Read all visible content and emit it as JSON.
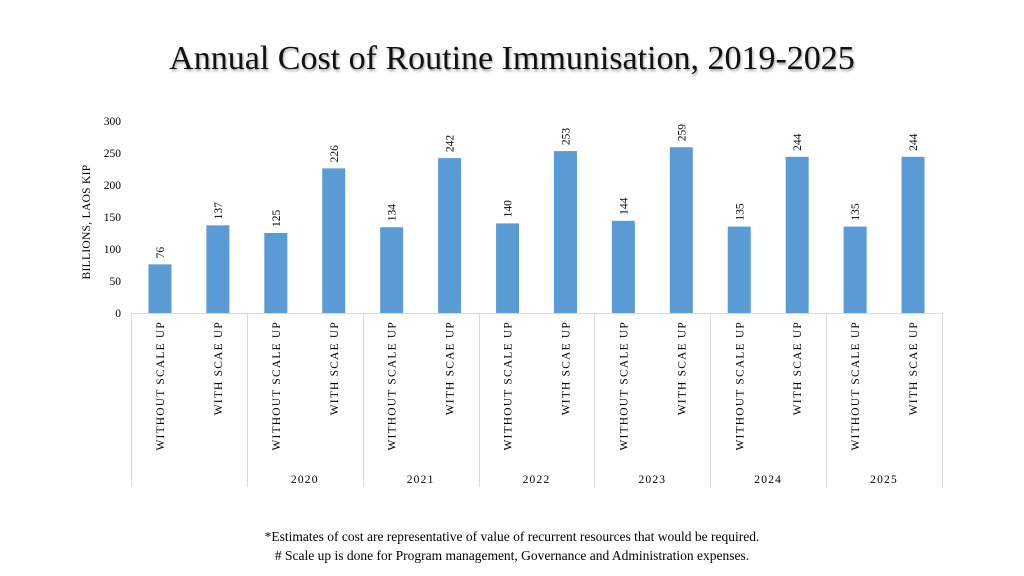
{
  "chart_data": {
    "type": "bar",
    "title": "Annual Cost of Routine Immunisation, 2019-2025",
    "ylabel": "BILLIONS, LAOS KIP",
    "xlabel": "",
    "ylim": [
      0,
      300
    ],
    "yticks": [
      0,
      50,
      100,
      150,
      200,
      250,
      300
    ],
    "bar_color": "#5b9bd5",
    "groups": [
      {
        "year": "",
        "bars": [
          {
            "label": "WITHOUT SCALE UP",
            "value": 76
          },
          {
            "label": "WITH SCAE UP",
            "value": 137
          }
        ]
      },
      {
        "year": "2020",
        "bars": [
          {
            "label": "WITHOUT SCALE UP",
            "value": 125
          },
          {
            "label": "WITH SCAE UP",
            "value": 226
          }
        ]
      },
      {
        "year": "2021",
        "bars": [
          {
            "label": "WITHOUT SCALE UP",
            "value": 134
          },
          {
            "label": "WITH SCAE UP",
            "value": 242
          }
        ]
      },
      {
        "year": "2022",
        "bars": [
          {
            "label": "WITHOUT SCALE UP",
            "value": 140
          },
          {
            "label": "WITH SCAE UP",
            "value": 253
          }
        ]
      },
      {
        "year": "2023",
        "bars": [
          {
            "label": "WITHOUT SCALE UP",
            "value": 144
          },
          {
            "label": "WITH SCAE UP",
            "value": 259
          }
        ]
      },
      {
        "year": "2024",
        "bars": [
          {
            "label": "WITHOUT SCALE UP",
            "value": 135
          },
          {
            "label": "WITH SCAE UP",
            "value": 244
          }
        ]
      },
      {
        "year": "2025",
        "bars": [
          {
            "label": "WITHOUT SCALE UP",
            "value": 135
          },
          {
            "label": "WITH SCAE UP",
            "value": 244
          }
        ]
      }
    ]
  },
  "footnotes": [
    "*Estimates of cost are representative of value of recurrent resources that would be required.",
    "# Scale up is done for Program management, Governance and Administration expenses."
  ]
}
